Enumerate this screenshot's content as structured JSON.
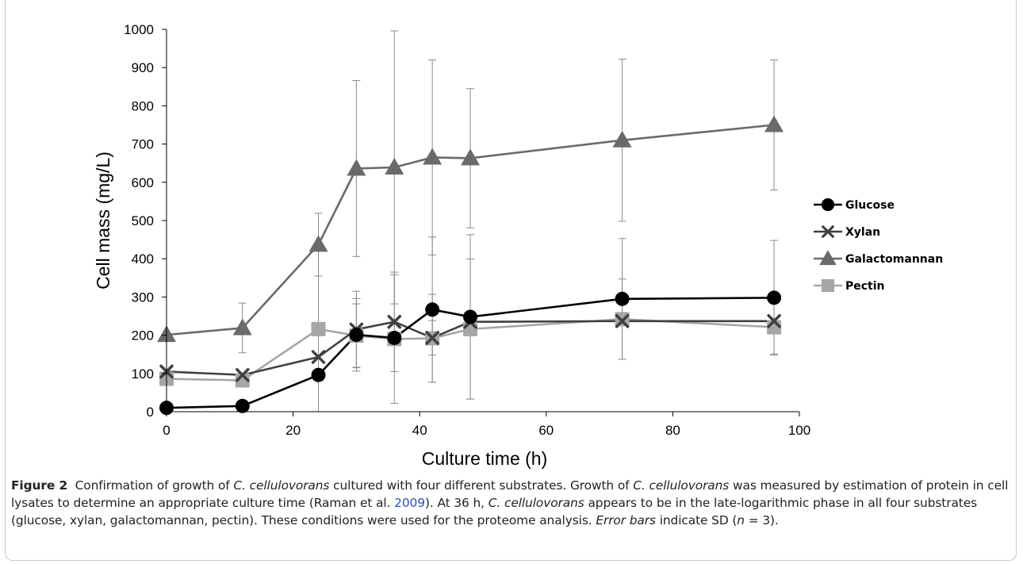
{
  "chart_data": {
    "type": "line",
    "title": "",
    "xlabel": "Culture time (h)",
    "ylabel": "Cell mass (mg/L)",
    "xlim": [
      0,
      100
    ],
    "ylim": [
      0,
      1000
    ],
    "xticks": [
      0,
      20,
      40,
      60,
      80,
      100
    ],
    "yticks": [
      0,
      100,
      200,
      300,
      400,
      500,
      600,
      700,
      800,
      900,
      1000
    ],
    "grid": false,
    "legend_position": "right",
    "x": [
      0,
      12,
      24,
      30,
      36,
      42,
      48,
      72,
      96
    ],
    "series": [
      {
        "name": "Glucose",
        "marker": "circle",
        "color": "#000000",
        "values": [
          10,
          15,
          96,
          201,
          193,
          267,
          248,
          295,
          298
        ],
        "error": [
          0,
          0,
          0,
          95,
          0,
          190,
          215,
          158,
          150
        ]
      },
      {
        "name": "Xylan",
        "marker": "x",
        "color": "#404040",
        "values": [
          105,
          96,
          143,
          215,
          235,
          193,
          235,
          237,
          237
        ],
        "error": [
          0,
          0,
          0,
          100,
          130,
          45,
          0,
          0,
          0
        ]
      },
      {
        "name": "Galactomannan",
        "marker": "triangle",
        "color": "#6a6a6a",
        "values": [
          201,
          219,
          437,
          636,
          639,
          665,
          663,
          710,
          750
        ],
        "error": [
          0,
          65,
          82,
          230,
          357,
          255,
          182,
          212,
          170
        ]
      },
      {
        "name": "Pectin",
        "marker": "square",
        "color": "#a6a6a6",
        "values": [
          86,
          82,
          216,
          199,
          190,
          192,
          216,
          242,
          221
        ],
        "error": [
          0,
          0,
          216,
          83,
          168,
          115,
          183,
          105,
          70
        ]
      }
    ]
  },
  "caption": {
    "label": "Figure 2",
    "t1": "Confirmation of growth of ",
    "org1": "C. cellulovorans",
    "t2": " cultured with four different substrates. Growth of ",
    "org2": "C. cellulovorans",
    "t3": " was measured by estimation of protein in cell lysates to determine an appropriate culture time (Raman et al. ",
    "ref_year": "2009",
    "t4": "). At 36 h, ",
    "org3": "C. cellulovorans",
    "t5": " appears to be in the late-logarithmic phase in all four substrates (glucose, xylan, galactomannan, pectin). These conditions were used for the proteome analysis. ",
    "errbars": "Error bars",
    "t6": " indicate SD (",
    "n": "n",
    "t7": " = 3)."
  }
}
